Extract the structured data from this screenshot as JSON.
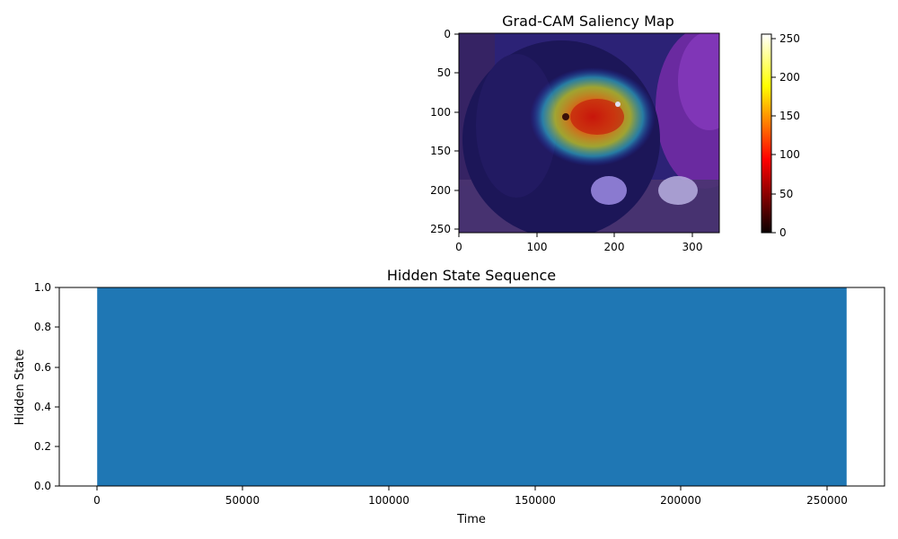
{
  "chart_data": [
    {
      "type": "heatmap",
      "title": "Grad-CAM Saliency Map",
      "xlabel": "",
      "ylabel": "",
      "xlim": [
        0,
        335
      ],
      "ylim": [
        256,
        0
      ],
      "xticks": [
        "0",
        "100",
        "200",
        "300"
      ],
      "yticks": [
        "0",
        "50",
        "100",
        "150",
        "200",
        "250"
      ],
      "image": "photograph of a black dog with tongue out, overlaid with a jet-colormap saliency heatmap",
      "saliency_peak": {
        "x": 170,
        "y": 120
      },
      "colorbar": {
        "colormap": "hot",
        "range": [
          0,
          255
        ],
        "ticks": [
          "0",
          "50",
          "100",
          "150",
          "200",
          "250"
        ]
      }
    },
    {
      "type": "area",
      "title": "Hidden State Sequence",
      "xlabel": "Time",
      "ylabel": "Hidden State",
      "xlim": [
        -13000,
        270000
      ],
      "ylim": [
        0,
        1
      ],
      "xticks": [
        "0",
        "50000",
        "100000",
        "150000",
        "200000",
        "250000"
      ],
      "yticks": [
        "0.0",
        "0.2",
        "0.4",
        "0.6",
        "0.8",
        "1.0"
      ],
      "series": [
        {
          "x": [
            0,
            257000
          ],
          "y": [
            1,
            1
          ],
          "fill_baseline": 0,
          "color": "#1f77b4"
        }
      ],
      "grid": false,
      "legend": "none"
    }
  ]
}
